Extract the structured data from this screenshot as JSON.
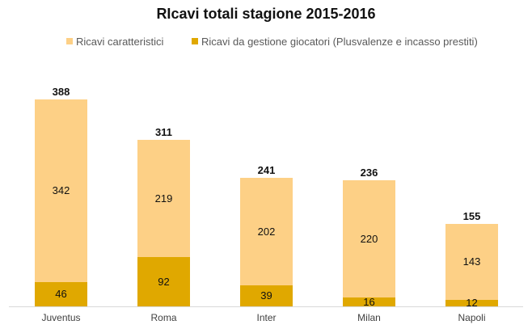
{
  "chart_data": {
    "type": "bar",
    "stacked": true,
    "title": "RIcavi totali stagione 2015-2016",
    "xlabel": "",
    "ylabel": "",
    "categories": [
      "Juventus",
      "Roma",
      "Inter",
      "Milan",
      "Napoli"
    ],
    "series": [
      {
        "name": "Ricavi da gestione giocatori (Plusvalenze e incasso prestiti)",
        "color": "#E0A800",
        "values": [
          46,
          92,
          39,
          16,
          12
        ]
      },
      {
        "name": "Ricavi caratteristici",
        "color": "#FDD086",
        "values": [
          342,
          219,
          202,
          220,
          143
        ]
      }
    ],
    "totals": [
      388,
      311,
      241,
      236,
      155
    ],
    "legend_position": "top",
    "grid": false,
    "ylim": [
      0,
      400
    ]
  },
  "title": "RIcavi totali stagione 2015-2016",
  "legend": [
    {
      "label": "Ricavi caratteristici",
      "color": "#FDD086"
    },
    {
      "label": "Ricavi da gestione giocatori (Plusvalenze e incasso prestiti)",
      "color": "#E0A800"
    }
  ],
  "bars": [
    {
      "category": "Juventus",
      "top": "342",
      "bottom": "46",
      "total": "388"
    },
    {
      "category": "Roma",
      "top": "219",
      "bottom": "92",
      "total": "311"
    },
    {
      "category": "Inter",
      "top": "202",
      "bottom": "39",
      "total": "241"
    },
    {
      "category": "Milan",
      "top": "220",
      "bottom": "16",
      "total": "236"
    },
    {
      "category": "Napoli",
      "top": "143",
      "bottom": "12",
      "total": "155"
    }
  ]
}
